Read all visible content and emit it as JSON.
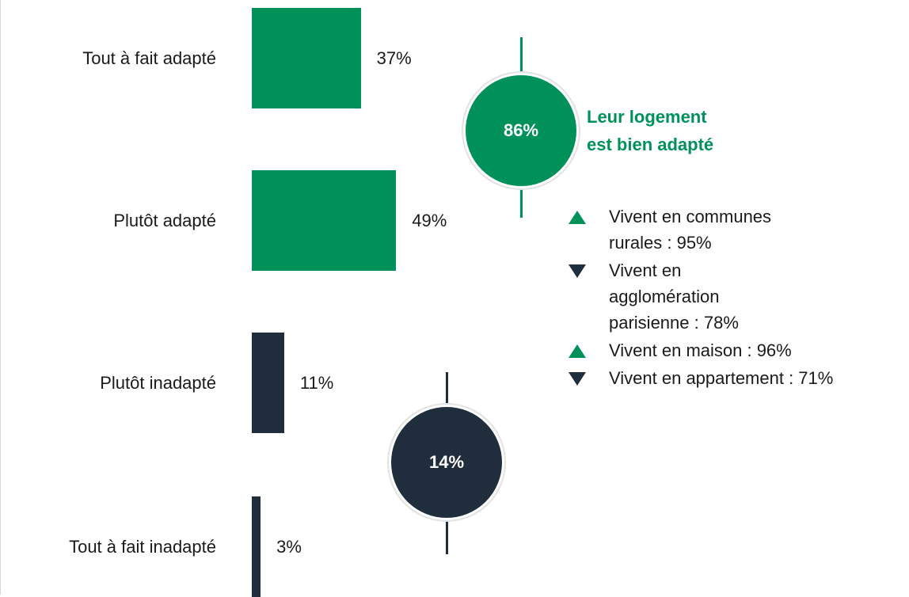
{
  "chart_data": {
    "type": "bar",
    "orientation": "horizontal",
    "categories": [
      "Tout à fait adapté",
      "Plutôt adapté",
      "Plutôt inadapté",
      "Tout à fait inadapté"
    ],
    "values": [
      37,
      49,
      11,
      3
    ],
    "value_labels": [
      "37%",
      "49%",
      "11%",
      "3%"
    ],
    "colors": [
      "#00915a",
      "#00915a",
      "#1f2d3d",
      "#1f2d3d"
    ],
    "groups": [
      {
        "value": 86,
        "label": "86%",
        "color": "#00915a",
        "title": [
          "Leur logement",
          "est bien adapté"
        ]
      },
      {
        "value": 14,
        "label": "14%",
        "color": "#1f2d3d"
      }
    ],
    "notes": [
      {
        "direction": "up",
        "color": "#00915a",
        "lines": [
          "Vivent en communes",
          "rurales : 95%"
        ]
      },
      {
        "direction": "down",
        "color": "#1f2d3d",
        "lines": [
          "Vivent en",
          "agglomération",
          "parisienne : 78%"
        ]
      },
      {
        "direction": "up",
        "color": "#00915a",
        "lines": [
          "Vivent en maison : 96%"
        ]
      },
      {
        "direction": "down",
        "color": "#1f2d3d",
        "lines": [
          "Vivent en appartement : 71%"
        ]
      }
    ]
  }
}
